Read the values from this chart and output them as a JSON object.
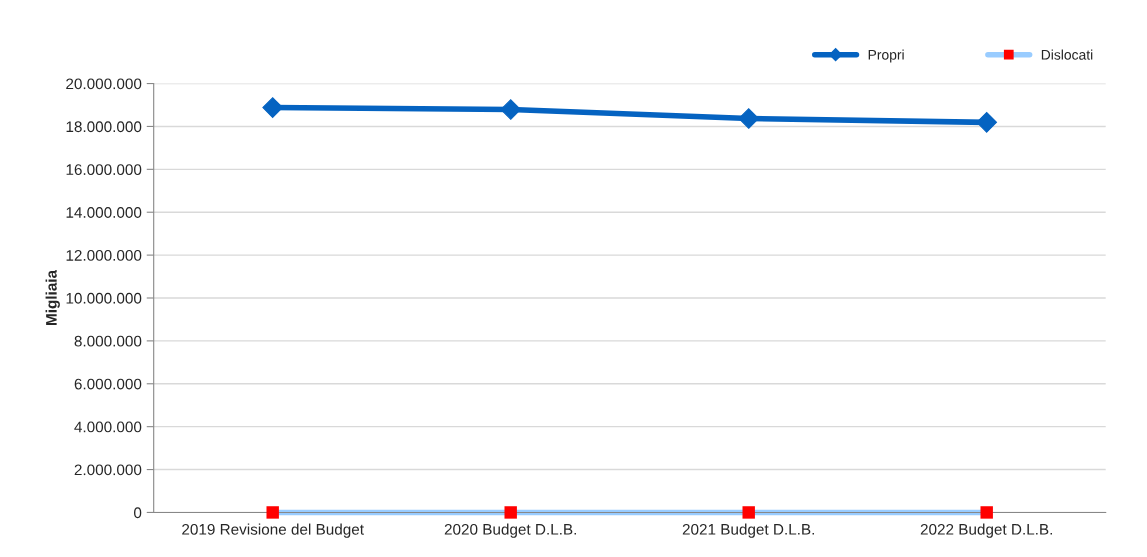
{
  "chart_data": {
    "type": "line",
    "ylabel": "Migliaia",
    "categories": [
      "2019 Revisione del Budget",
      "2020 Budget D.L.B.",
      "2021 Budget D.L.B.",
      "2022 Budget D.L.B."
    ],
    "series": [
      {
        "name": "Propri",
        "color": "#0563c1",
        "marker": "diamond",
        "values": [
          18880000,
          18790000,
          18370000,
          18190000
        ]
      },
      {
        "name": "Dislocati",
        "color": "#99ccff",
        "marker": "square",
        "colors": [
          "#ff0000",
          "#ff0000",
          "#ff0000",
          "#ff0000"
        ],
        "values": [
          0,
          0,
          0,
          0
        ]
      }
    ],
    "ylim": [
      0,
      20000000
    ],
    "yticks": [
      {
        "value": 0,
        "label": "0"
      },
      {
        "value": 2000000,
        "label": "2.000.000"
      },
      {
        "value": 4000000,
        "label": "4.000.000"
      },
      {
        "value": 6000000,
        "label": "6.000.000"
      },
      {
        "value": 8000000,
        "label": "8.000.000"
      },
      {
        "value": 10000000,
        "label": "10.000.000"
      },
      {
        "value": 12000000,
        "label": "12.000.000"
      },
      {
        "value": 14000000,
        "label": "14.000.000"
      },
      {
        "value": 16000000,
        "label": "16.000.000"
      },
      {
        "value": 18000000,
        "label": "18.000.000"
      },
      {
        "value": 20000000,
        "label": "20.000.000"
      }
    ],
    "grid": "y",
    "legend": "top right"
  }
}
